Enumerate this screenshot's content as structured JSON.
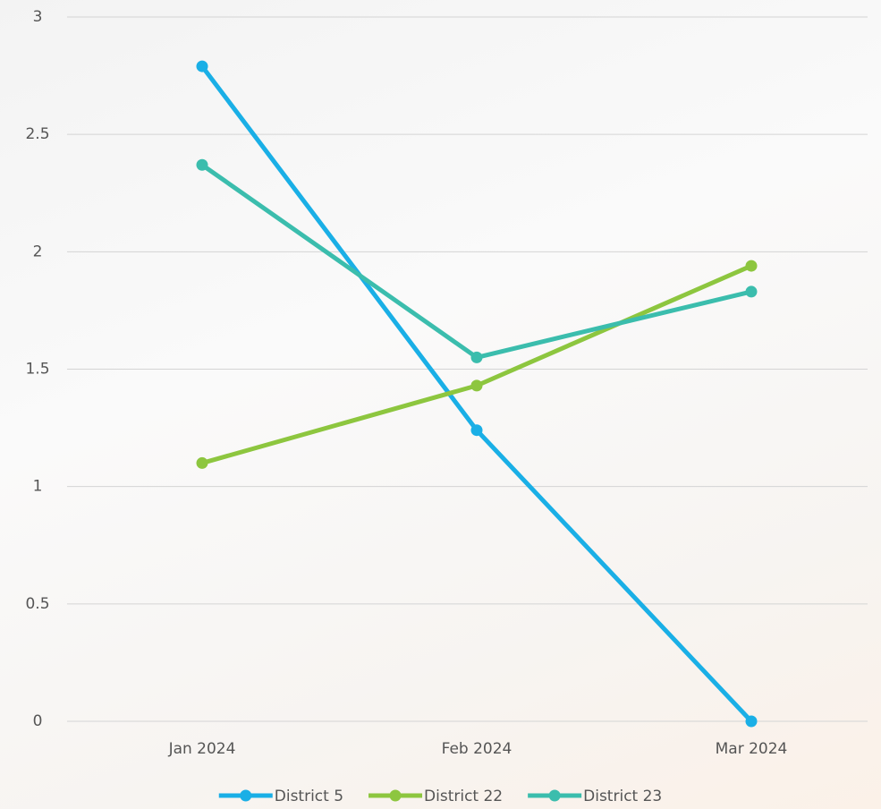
{
  "chart_data": {
    "type": "line",
    "categories": [
      "Jan 2024",
      "Feb 2024",
      "Mar 2024"
    ],
    "series": [
      {
        "name": "District 5",
        "color": "#1aafe6",
        "values": [
          2.79,
          1.24,
          0
        ]
      },
      {
        "name": "District 22",
        "color": "#8dc63f",
        "values": [
          1.1,
          1.43,
          1.94
        ]
      },
      {
        "name": "District 23",
        "color": "#3bbdad",
        "values": [
          2.37,
          1.55,
          1.83
        ]
      }
    ],
    "ylim": [
      0,
      3
    ],
    "yticks": [
      0,
      0.5,
      1,
      1.5,
      2,
      2.5,
      3
    ],
    "grid": true,
    "legend": "bottom"
  }
}
